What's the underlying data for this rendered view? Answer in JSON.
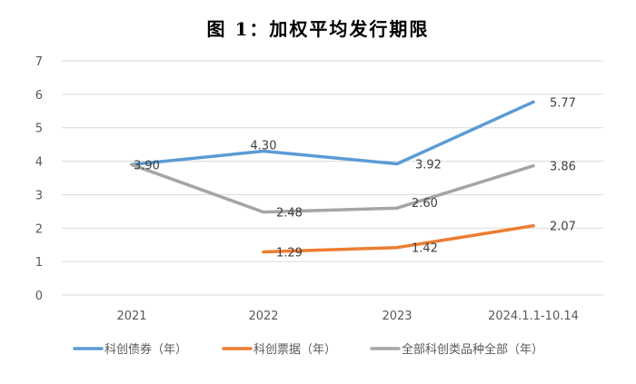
{
  "chart_data": {
    "type": "line",
    "title": "图 1：加权平均发行期限",
    "categories": [
      "2021",
      "2022",
      "2023",
      "2024.1.1-10.14"
    ],
    "ylim": [
      0,
      7
    ],
    "yticks": [
      "0",
      "1",
      "2",
      "3",
      "4",
      "5",
      "6",
      "7"
    ],
    "grid": true,
    "legend_position": "bottom",
    "series": [
      {
        "name": "科创债券（年）",
        "color": "#5B9BD5",
        "values": [
          3.9,
          4.3,
          3.92,
          5.77
        ],
        "labels": [
          "3.90",
          "4.30",
          "3.92",
          "5.77"
        ]
      },
      {
        "name": "科创票据（年）",
        "color": "#ED7D31",
        "values": [
          null,
          1.29,
          1.42,
          2.07
        ],
        "labels": [
          "",
          "1.29",
          "1.42",
          "2.07"
        ]
      },
      {
        "name": "全部科创类品种全部（年）",
        "color": "#A5A5A5",
        "values": [
          3.9,
          2.48,
          2.6,
          3.86
        ],
        "labels": [
          "",
          "2.48",
          "2.60",
          "3.86"
        ]
      }
    ]
  }
}
